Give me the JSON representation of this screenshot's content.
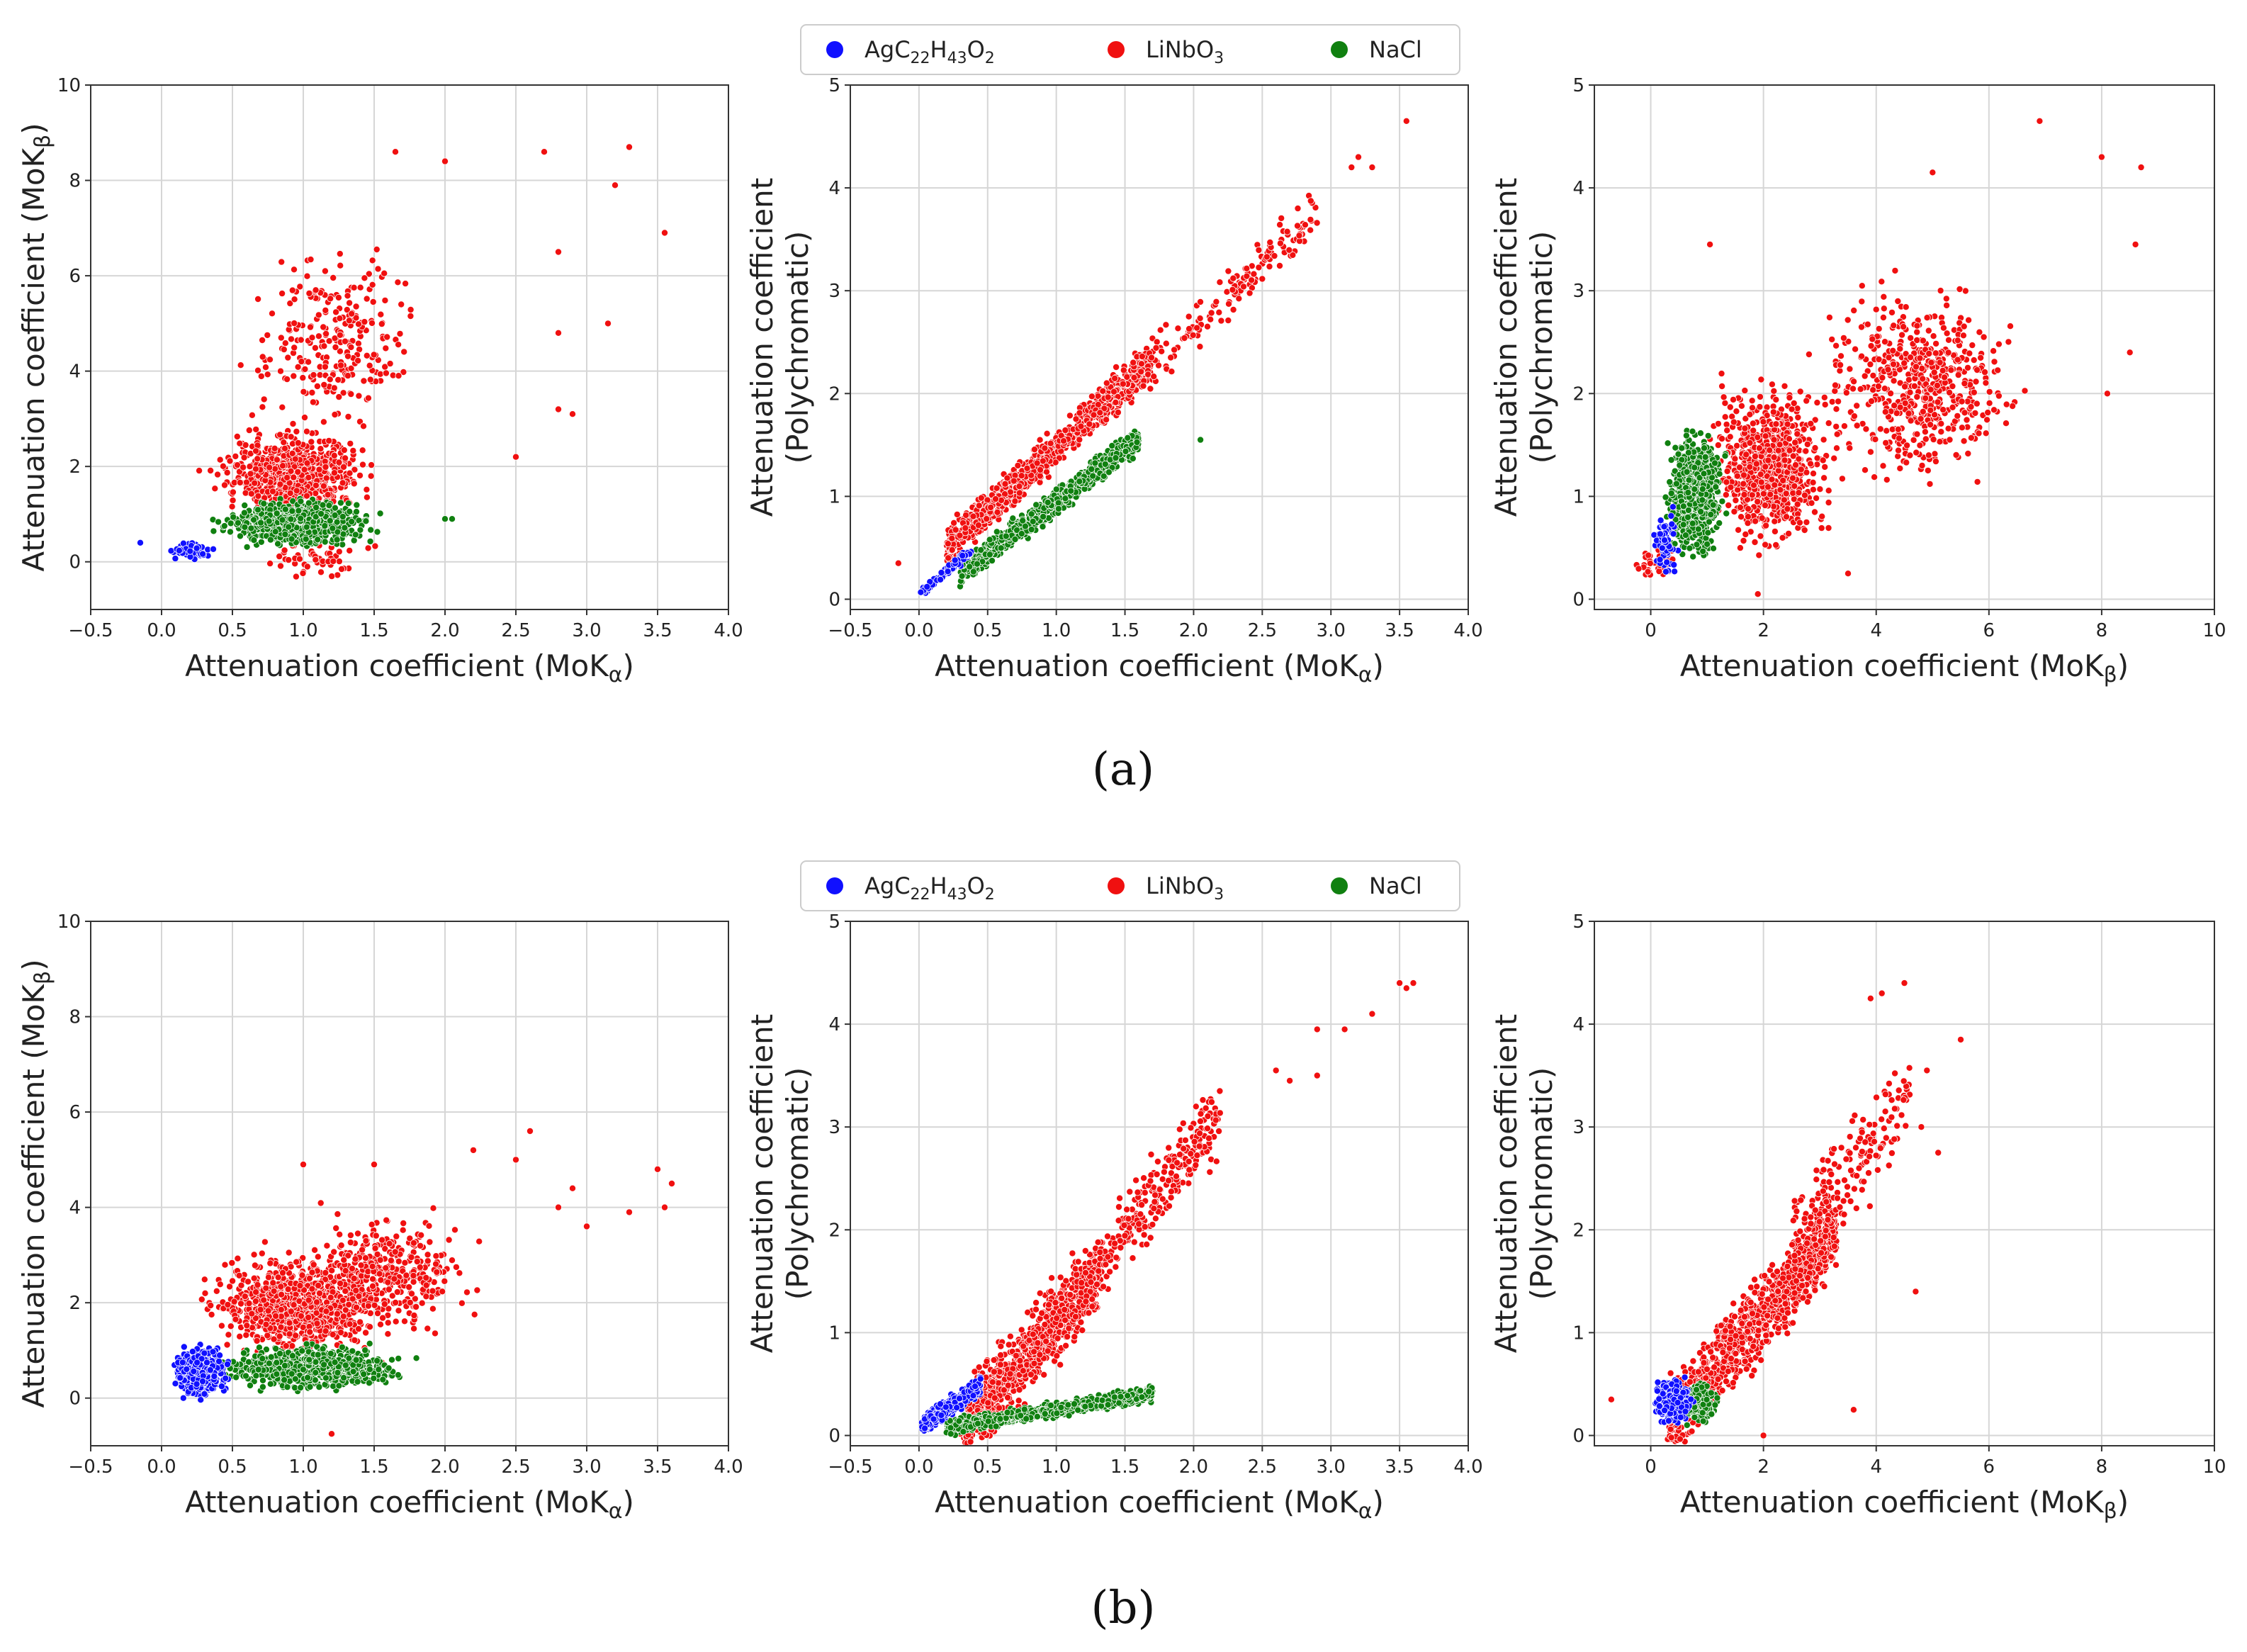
{
  "figure": {
    "panel_labels": [
      "(a)",
      "(b)"
    ]
  },
  "legend": {
    "series": [
      {
        "name": "AgC22H43O2",
        "base": "AgC",
        "parts": [
          [
            "22",
            "sub"
          ],
          [
            "H",
            ""
          ],
          [
            "43",
            "sub"
          ],
          [
            "O",
            ""
          ],
          [
            "2",
            "sub"
          ]
        ],
        "color": "#1010ff"
      },
      {
        "name": "LiNbO3",
        "base": "LiNbO",
        "parts": [
          [
            "3",
            "sub"
          ]
        ],
        "color": "#f01010"
      },
      {
        "name": "NaCl",
        "base": "NaCl",
        "parts": [],
        "color": "#108010"
      }
    ]
  },
  "chart_data": [
    {
      "type": "scatter",
      "row": "a",
      "col": 1,
      "xlabel": "Attenuation coefficient (MoKα)",
      "ylabel": "Attenuation coefficient (MoKβ)",
      "xlim": [
        -0.5,
        4.0
      ],
      "ylim": [
        -1,
        10
      ],
      "xticks": [
        "−0.5",
        "0.0",
        "0.5",
        "1.0",
        "1.5",
        "2.0",
        "2.5",
        "3.0",
        "3.5",
        "4.0"
      ],
      "yticks": [
        "0",
        "2",
        "4",
        "6",
        "8",
        "10"
      ],
      "series": [
        {
          "name": "AgC22H43O2",
          "seed": 11,
          "clusters": [
            {
              "n": 70,
              "x": [
                0.0,
                0.4
              ],
              "y": [
                0.0,
                0.45
              ]
            }
          ],
          "points": [
            [
              -0.15,
              0.4
            ]
          ]
        },
        {
          "name": "LiNbO3",
          "seed": 12,
          "clusters": [
            {
              "n": 700,
              "x": [
                0.2,
                1.6
              ],
              "y": [
                0.6,
                3.0
              ]
            },
            {
              "n": 260,
              "x": [
                0.4,
                2.0
              ],
              "y": [
                2.0,
                7.2
              ]
            },
            {
              "n": 50,
              "x": [
                0.6,
                1.6
              ],
              "y": [
                -0.4,
                0.6
              ]
            }
          ],
          "points": [
            [
              1.65,
              8.6
            ],
            [
              2.0,
              8.4
            ],
            [
              2.7,
              8.6
            ],
            [
              3.3,
              8.7
            ],
            [
              3.55,
              6.9
            ],
            [
              3.15,
              5.0
            ],
            [
              3.2,
              7.9
            ],
            [
              2.8,
              6.5
            ],
            [
              2.9,
              3.1
            ],
            [
              2.8,
              3.2
            ],
            [
              2.8,
              4.8
            ],
            [
              2.5,
              2.2
            ]
          ]
        },
        {
          "name": "NaCl",
          "seed": 13,
          "clusters": [
            {
              "n": 800,
              "x": [
                0.3,
                1.6
              ],
              "y": [
                0.2,
                1.4
              ]
            }
          ],
          "points": [
            [
              2.0,
              0.9
            ],
            [
              2.05,
              0.9
            ]
          ]
        }
      ]
    },
    {
      "type": "scatter",
      "row": "a",
      "col": 2,
      "xlabel": "Attenuation coefficient (MoKα)",
      "ylabel": "Attenuation coefficient (Polychromatic)",
      "xlim": [
        -0.5,
        4.0
      ],
      "ylim": [
        -0.1,
        5.0
      ],
      "xticks": [
        "−0.5",
        "0.0",
        "0.5",
        "1.0",
        "1.5",
        "2.0",
        "2.5",
        "3.0",
        "3.5",
        "4.0"
      ],
      "yticks": [
        "0",
        "1",
        "2",
        "3",
        "4",
        "5"
      ],
      "series": [
        {
          "name": "AgC22H43O2",
          "seed": 21,
          "band": {
            "n": 80,
            "x": [
              0.0,
              0.38
            ],
            "slope": 1.05,
            "offset": 0.06,
            "spread": 0.06
          }
        },
        {
          "name": "LiNbO3",
          "seed": 22,
          "band": {
            "n": 1000,
            "x": [
              0.2,
              1.7
            ],
            "slope": 1.22,
            "offset": 0.25,
            "spread": 0.22
          },
          "band2": {
            "n": 160,
            "x": [
              1.6,
              2.9
            ],
            "slope": 1.2,
            "offset": 0.25,
            "spread": 0.3
          },
          "points": [
            [
              -0.15,
              0.35
            ],
            [
              3.15,
              4.2
            ],
            [
              3.2,
              4.3
            ],
            [
              3.3,
              4.2
            ],
            [
              3.55,
              4.65
            ]
          ]
        },
        {
          "name": "NaCl",
          "seed": 23,
          "band": {
            "n": 900,
            "x": [
              0.3,
              1.6
            ],
            "slope": 1.0,
            "offset": -0.05,
            "spread": 0.15
          },
          "points": [
            [
              2.05,
              1.55
            ]
          ]
        }
      ]
    },
    {
      "type": "scatter",
      "row": "a",
      "col": 3,
      "xlabel": "Attenuation coefficient (MoKβ)",
      "ylabel": "Attenuation coefficient (Polychromatic)",
      "xlim": [
        -1.0,
        10.0
      ],
      "ylim": [
        -0.1,
        5.0
      ],
      "xticks": [
        "0",
        "2",
        "4",
        "6",
        "8",
        "10"
      ],
      "yticks": [
        "0",
        "1",
        "2",
        "3",
        "4",
        "5"
      ],
      "series": [
        {
          "name": "AgC22H43O2",
          "seed": 31,
          "clusters": [
            {
              "n": 80,
              "x": [
                0.0,
                0.5
              ],
              "y": [
                0.15,
                0.95
              ]
            }
          ]
        },
        {
          "name": "LiNbO3",
          "seed": 32,
          "clusters": [
            {
              "n": 700,
              "x": [
                0.8,
                3.5
              ],
              "y": [
                0.3,
                2.3
              ]
            },
            {
              "n": 550,
              "x": [
                2.5,
                7.0
              ],
              "y": [
                0.9,
                3.3
              ]
            },
            {
              "n": 40,
              "x": [
                -0.4,
                0.6
              ],
              "y": [
                0.1,
                0.6
              ]
            }
          ],
          "points": [
            [
              8.7,
              4.2
            ],
            [
              8.0,
              4.3
            ],
            [
              6.9,
              4.65
            ],
            [
              5.0,
              4.15
            ],
            [
              8.6,
              3.45
            ],
            [
              8.5,
              2.4
            ],
            [
              8.1,
              2.0
            ],
            [
              3.5,
              0.25
            ],
            [
              1.9,
              0.05
            ],
            [
              1.05,
              3.45
            ]
          ]
        },
        {
          "name": "NaCl",
          "seed": 33,
          "clusters": [
            {
              "n": 900,
              "x": [
                0.2,
                1.4
              ],
              "y": [
                0.3,
                1.75
              ]
            }
          ]
        }
      ]
    },
    {
      "type": "scatter",
      "row": "b",
      "col": 1,
      "xlabel": "Attenuation coefficient (MoKα)",
      "ylabel": "Attenuation coefficient (MoKβ)",
      "xlim": [
        -0.5,
        4.0
      ],
      "ylim": [
        -1,
        10
      ],
      "xticks": [
        "−0.5",
        "0.0",
        "0.5",
        "1.0",
        "1.5",
        "2.0",
        "2.5",
        "3.0",
        "3.5",
        "4.0"
      ],
      "yticks": [
        "0",
        "2",
        "4",
        "6",
        "8",
        "10"
      ],
      "series": [
        {
          "name": "AgC22H43O2",
          "seed": 41,
          "clusters": [
            {
              "n": 500,
              "x": [
                0.05,
                0.5
              ],
              "y": [
                -0.1,
                1.2
              ]
            }
          ]
        },
        {
          "name": "LiNbO3",
          "seed": 42,
          "clusters": [
            {
              "n": 900,
              "x": [
                0.2,
                1.7
              ],
              "y": [
                0.6,
                3.3
              ]
            },
            {
              "n": 350,
              "x": [
                0.9,
                2.3
              ],
              "y": [
                1.0,
                4.3
              ]
            }
          ],
          "points": [
            [
              1.0,
              4.9
            ],
            [
              1.5,
              4.9
            ],
            [
              2.2,
              5.2
            ],
            [
              2.6,
              5.6
            ],
            [
              2.5,
              5.0
            ],
            [
              2.9,
              4.4
            ],
            [
              3.0,
              3.6
            ],
            [
              3.3,
              3.9
            ],
            [
              3.5,
              4.8
            ],
            [
              3.55,
              4.0
            ],
            [
              3.6,
              4.5
            ],
            [
              2.8,
              4.0
            ],
            [
              1.2,
              -0.75
            ]
          ]
        },
        {
          "name": "NaCl",
          "seed": 43,
          "clusters": [
            {
              "n": 900,
              "x": [
                0.3,
                1.8
              ],
              "y": [
                0.1,
                1.2
              ]
            }
          ]
        }
      ]
    },
    {
      "type": "scatter",
      "row": "b",
      "col": 2,
      "xlabel": "Attenuation coefficient (MoKα)",
      "ylabel": "Attenuation coefficient (Polychromatic)",
      "xlim": [
        -0.5,
        4.0
      ],
      "ylim": [
        -0.1,
        5.0
      ],
      "xticks": [
        "−0.5",
        "0.0",
        "0.5",
        "1.0",
        "1.5",
        "2.0",
        "2.5",
        "3.0",
        "3.5",
        "4.0"
      ],
      "yticks": [
        "0",
        "1",
        "2",
        "3",
        "4",
        "5"
      ],
      "series": [
        {
          "name": "AgC22H43O2",
          "seed": 51,
          "band": {
            "n": 350,
            "x": [
              0.02,
              0.45
            ],
            "slope": 0.9,
            "offset": 0.08,
            "spread": 0.1
          }
        },
        {
          "name": "LiNbO3",
          "seed": 52,
          "band": {
            "n": 950,
            "x": [
              0.3,
              1.3
            ],
            "slope": 1.5,
            "offset": -0.4,
            "spread": 0.45
          },
          "band2": {
            "n": 280,
            "x": [
              1.2,
              2.2
            ],
            "slope": 1.7,
            "offset": -0.6,
            "spread": 0.45
          },
          "points": [
            [
              3.6,
              4.4
            ],
            [
              3.55,
              4.35
            ],
            [
              3.5,
              4.4
            ],
            [
              3.3,
              4.1
            ],
            [
              3.1,
              3.95
            ],
            [
              2.9,
              3.95
            ],
            [
              2.9,
              3.5
            ],
            [
              2.7,
              3.45
            ],
            [
              2.6,
              3.55
            ]
          ]
        },
        {
          "name": "NaCl",
          "seed": 53,
          "band": {
            "n": 1000,
            "x": [
              0.2,
              1.7
            ],
            "slope": 0.22,
            "offset": 0.03,
            "spread": 0.08
          }
        }
      ]
    },
    {
      "type": "scatter",
      "row": "b",
      "col": 3,
      "xlabel": "Attenuation coefficient (MoKβ)",
      "ylabel": "Attenuation coefficient (Polychromatic)",
      "xlim": [
        -1.0,
        10.0
      ],
      "ylim": [
        -0.1,
        5.0
      ],
      "xticks": [
        "0",
        "2",
        "4",
        "6",
        "8",
        "10"
      ],
      "yticks": [
        "0",
        "1",
        "2",
        "3",
        "4",
        "5"
      ],
      "series": [
        {
          "name": "AgC22H43O2",
          "seed": 61,
          "clusters": [
            {
              "n": 300,
              "x": [
                -0.05,
                0.8
              ],
              "y": [
                0.05,
                0.6
              ]
            }
          ]
        },
        {
          "name": "LiNbO3",
          "seed": 62,
          "band": {
            "n": 1000,
            "x": [
              0.3,
              3.3
            ],
            "slope": 0.62,
            "offset": -0.05,
            "spread": 0.45
          },
          "band2": {
            "n": 180,
            "x": [
              2.5,
              4.6
            ],
            "slope": 0.7,
            "offset": 0.1,
            "spread": 0.6
          },
          "points": [
            [
              4.5,
              4.4
            ],
            [
              4.1,
              4.3
            ],
            [
              3.9,
              4.25
            ],
            [
              5.5,
              3.85
            ],
            [
              4.9,
              3.55
            ],
            [
              4.8,
              3.0
            ],
            [
              5.1,
              2.75
            ],
            [
              4.7,
              1.4
            ],
            [
              3.6,
              0.25
            ],
            [
              2.0,
              0.0
            ],
            [
              -0.7,
              0.35
            ]
          ]
        },
        {
          "name": "NaCl",
          "seed": 63,
          "clusters": [
            {
              "n": 250,
              "x": [
                0.3,
                1.3
              ],
              "y": [
                0.1,
                0.55
              ]
            }
          ]
        }
      ]
    }
  ]
}
